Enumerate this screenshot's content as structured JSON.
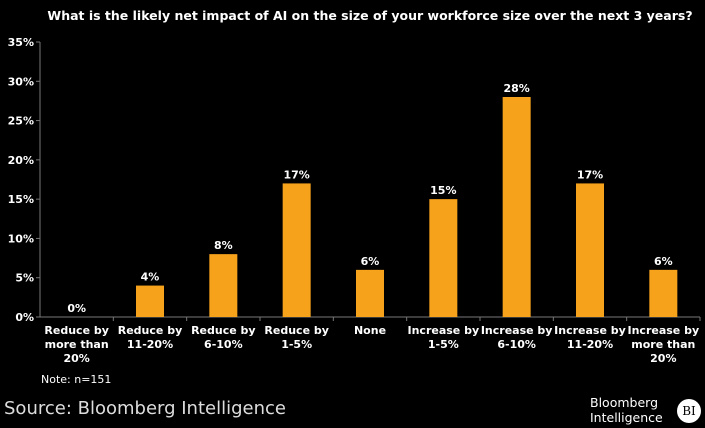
{
  "chart_data": {
    "type": "bar",
    "title": "What is the likely net impact of AI on the size of your workforce size over the next 3 years?",
    "categories": [
      "Reduce by more than 20%",
      "Reduce by 11-20%",
      "Reduce by 6-10%",
      "Reduce by 1-5%",
      "None",
      "Increase by 1-5%",
      "Increase by 6-10%",
      "Increase by 11-20%",
      "Increase by more than 20%"
    ],
    "values": [
      0,
      4,
      8,
      17,
      6,
      15,
      28,
      17,
      6
    ],
    "data_labels": [
      "0%",
      "4%",
      "8%",
      "17%",
      "6%",
      "15%",
      "28%",
      "17%",
      "6%"
    ],
    "ylim": [
      0,
      35
    ],
    "yticks": [
      "0%",
      "5%",
      "10%",
      "15%",
      "20%",
      "25%",
      "30%",
      "35%"
    ],
    "xlabel": "",
    "ylabel": "",
    "grid": false,
    "colors": {
      "bar": "#F7A21B",
      "background": "#000000"
    }
  },
  "note": "Note: n=151",
  "source": "Source: Bloomberg Intelligence",
  "logo": {
    "line1": "Bloomberg",
    "line2": "Intelligence",
    "badge": "BI"
  }
}
